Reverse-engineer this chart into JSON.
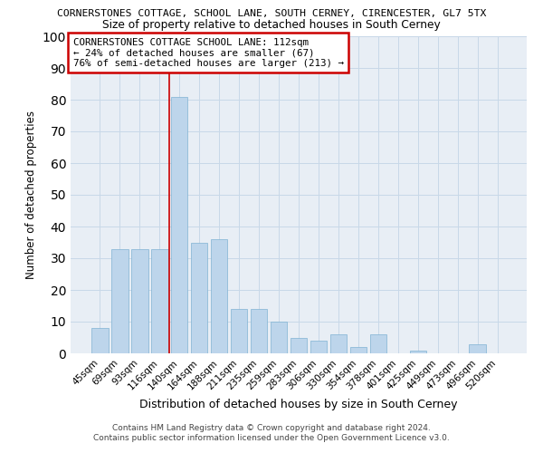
{
  "title": "CORNERSTONES COTTAGE, SCHOOL LANE, SOUTH CERNEY, CIRENCESTER, GL7 5TX",
  "subtitle": "Size of property relative to detached houses in South Cerney",
  "xlabel": "Distribution of detached houses by size in South Cerney",
  "ylabel": "Number of detached properties",
  "footer_line1": "Contains HM Land Registry data © Crown copyright and database right 2024.",
  "footer_line2": "Contains public sector information licensed under the Open Government Licence v3.0.",
  "categories": [
    "45sqm",
    "69sqm",
    "93sqm",
    "116sqm",
    "140sqm",
    "164sqm",
    "188sqm",
    "211sqm",
    "235sqm",
    "259sqm",
    "283sqm",
    "306sqm",
    "330sqm",
    "354sqm",
    "378sqm",
    "401sqm",
    "425sqm",
    "449sqm",
    "473sqm",
    "496sqm",
    "520sqm"
  ],
  "values": [
    8,
    33,
    33,
    33,
    81,
    35,
    36,
    14,
    14,
    10,
    5,
    4,
    6,
    2,
    6,
    0,
    1,
    0,
    0,
    3,
    0
  ],
  "bar_color": "#bdd5eb",
  "bar_edge_color": "#7fb3d3",
  "grid_color": "#c8d8e8",
  "background_color": "#e8eef5",
  "vline_x": 3.5,
  "vline_color": "#cc0000",
  "annotation_line1": "CORNERSTONES COTTAGE SCHOOL LANE: 112sqm",
  "annotation_line2": "← 24% of detached houses are smaller (67)",
  "annotation_line3": "76% of semi-detached houses are larger (213) →",
  "annotation_box_color": "#cc0000",
  "ylim": [
    0,
    100
  ],
  "yticks": [
    0,
    10,
    20,
    30,
    40,
    50,
    60,
    70,
    80,
    90,
    100
  ]
}
